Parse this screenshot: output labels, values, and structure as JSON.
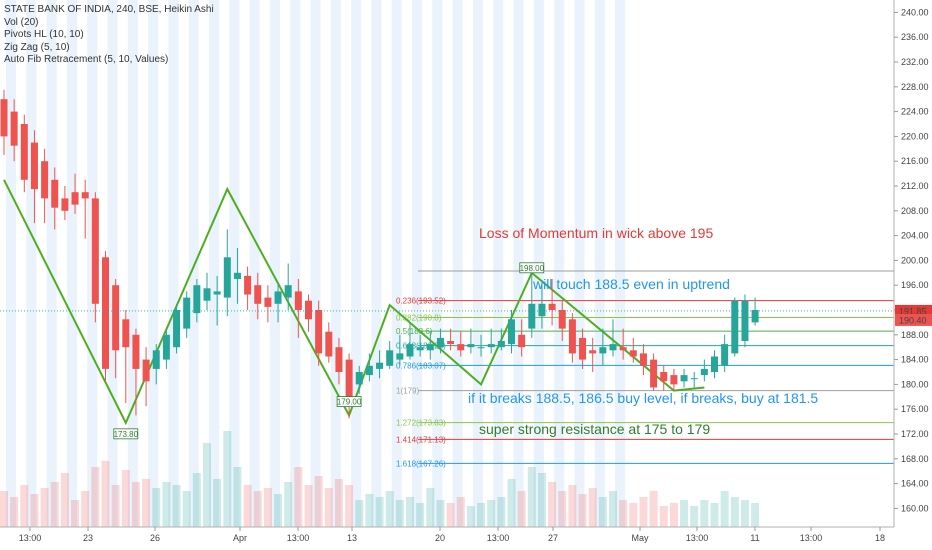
{
  "legend": {
    "symbol_line": "STATE BANK OF INDIA, 240, BSE, Heikin Ashi",
    "indicators": [
      "Vol (20)",
      "Pivots HL (10, 10)",
      "Zig Zag (5, 10)",
      "Auto Fib Retracement (5, 10, Values)"
    ]
  },
  "annotations": [
    {
      "text": "Loss of Momentum in wick above 195",
      "color": "#e53935"
    },
    {
      "text": "will touch 188.5 even in uptrend",
      "color": "#2196f3"
    },
    {
      "text": "if it breaks 188.5, 186.5 buy level, if breaks, buy at 181.5",
      "color": "#2196f3"
    },
    {
      "text": "super strong resistance at 175 to 179",
      "color": "#2e7d32"
    }
  ],
  "colors": {
    "up": "#26a69a",
    "down": "#ef5350",
    "zigzag": "#4caf20",
    "price_tag_a": "#e53935",
    "price_tag_b": "#ef5350"
  },
  "chart_data": {
    "type": "candlestick",
    "symbol": "STATE BANK OF INDIA",
    "interval": "240",
    "exchange": "BSE",
    "style": "Heikin Ashi",
    "ylim": [
      157,
      242
    ],
    "y_ticks": [
      "160.00",
      "164.00",
      "168.00",
      "172.00",
      "176.00",
      "180.00",
      "184.00",
      "188.00",
      "192.00",
      "196.00",
      "200.00",
      "204.00",
      "208.00",
      "212.00",
      "216.00",
      "220.00",
      "224.00",
      "228.00",
      "232.00",
      "236.00",
      "240.00"
    ],
    "x_ticks": [
      "13:00",
      "23",
      "26",
      "Apr",
      "13:00",
      "13",
      "20",
      "13:00",
      "27",
      "May",
      "13:00",
      "11",
      "13:00",
      "18"
    ],
    "price_tags": [
      {
        "label": "191.85",
        "value": 191.85,
        "color": "#e53935"
      },
      {
        "label": "190.40",
        "value": 190.4,
        "color": "#ef5350"
      }
    ],
    "fib_levels": [
      {
        "label": "0.236(193.52)",
        "value": 193.52,
        "color": "#e53935"
      },
      {
        "label": "0.382(190.8)",
        "value": 190.8,
        "color": "#8bc34a"
      },
      {
        "label": "0.5(188.6)",
        "value": 188.6,
        "color": "#4caf50"
      },
      {
        "label": "0.618(186.26)",
        "value": 186.26,
        "color": "#26a69a"
      },
      {
        "label": "0.786(183.07)",
        "value": 183.07,
        "color": "#2196f3"
      },
      {
        "label": "1(179)",
        "value": 179,
        "color": "#9e9e9e"
      },
      {
        "label": "1.272(173.83)",
        "value": 173.83,
        "color": "#8bc34a"
      },
      {
        "label": "1.414(171.13)",
        "value": 171.13,
        "color": "#e53935"
      },
      {
        "label": "1.618(167.26)",
        "value": 167.26,
        "color": "#2196f3"
      }
    ],
    "fib_top_level": 198.3,
    "pivots": [
      {
        "label": "173.80",
        "value": 173.8,
        "index": 12
      },
      {
        "label": "179.00",
        "value": 179.0,
        "index": 34
      },
      {
        "label": "198.00",
        "value": 198.0,
        "index": 52
      }
    ],
    "zigzag": [
      {
        "index": 0,
        "value": 213
      },
      {
        "index": 12,
        "value": 173.8
      },
      {
        "index": 22,
        "value": 211.5
      },
      {
        "index": 34,
        "value": 175
      },
      {
        "index": 38,
        "value": 192.8
      },
      {
        "index": 47,
        "value": 180
      },
      {
        "index": 52,
        "value": 198
      },
      {
        "index": 66,
        "value": 179
      },
      {
        "index": 69,
        "value": 179.5
      }
    ],
    "candles": [
      {
        "o": 226.0,
        "c": 220.0,
        "h": 227.5,
        "l": 217.0,
        "v": 12
      },
      {
        "o": 224.0,
        "c": 218.5,
        "h": 226.0,
        "l": 216.0,
        "v": 10
      },
      {
        "o": 222.0,
        "c": 213.0,
        "h": 223.5,
        "l": 211.0,
        "v": 14
      },
      {
        "o": 219.0,
        "c": 211.5,
        "h": 221.0,
        "l": 206.0,
        "v": 11
      },
      {
        "o": 216.0,
        "c": 210.0,
        "h": 218.0,
        "l": 206.0,
        "v": 13
      },
      {
        "o": 213.0,
        "c": 208.5,
        "h": 215.0,
        "l": 205.0,
        "v": 15
      },
      {
        "o": 210.0,
        "c": 208.0,
        "h": 212.0,
        "l": 206.5,
        "v": 18
      },
      {
        "o": 211.0,
        "c": 209.0,
        "h": 214.0,
        "l": 207.5,
        "v": 9
      },
      {
        "o": 211.0,
        "c": 210.0,
        "h": 213.0,
        "l": 203.5,
        "v": 12
      },
      {
        "o": 210.0,
        "c": 193.0,
        "h": 211.0,
        "l": 190.0,
        "v": 20
      },
      {
        "o": 200.5,
        "c": 182.5,
        "h": 201.5,
        "l": 180.5,
        "v": 22
      },
      {
        "o": 196.0,
        "c": 185.5,
        "h": 197.0,
        "l": 181.0,
        "v": 14
      },
      {
        "o": 190.5,
        "c": 186.0,
        "h": 192.0,
        "l": 177.0,
        "v": 19
      },
      {
        "o": 188.0,
        "c": 182.5,
        "h": 189.0,
        "l": 175.0,
        "v": 15
      },
      {
        "o": 184.0,
        "c": 180.5,
        "h": 186.0,
        "l": 176.5,
        "v": 16
      },
      {
        "o": 182.5,
        "c": 185.5,
        "h": 186.5,
        "l": 180.0,
        "v": 13
      },
      {
        "o": 184.0,
        "c": 188.0,
        "h": 189.0,
        "l": 182.5,
        "v": 15
      },
      {
        "o": 186.0,
        "c": 192.0,
        "h": 193.0,
        "l": 185.0,
        "v": 14
      },
      {
        "o": 189.0,
        "c": 194.0,
        "h": 195.0,
        "l": 187.5,
        "v": 12
      },
      {
        "o": 191.5,
        "c": 196.0,
        "h": 197.0,
        "l": 190.0,
        "v": 18
      },
      {
        "o": 193.5,
        "c": 195.5,
        "h": 198.0,
        "l": 192.0,
        "v": 28
      },
      {
        "o": 194.5,
        "c": 195.0,
        "h": 197.5,
        "l": 189.5,
        "v": 16
      },
      {
        "o": 194.0,
        "c": 200.5,
        "h": 205.0,
        "l": 191.0,
        "v": 32
      },
      {
        "o": 197.0,
        "c": 198.0,
        "h": 202.0,
        "l": 193.0,
        "v": 20
      },
      {
        "o": 197.5,
        "c": 194.5,
        "h": 199.0,
        "l": 192.0,
        "v": 14
      },
      {
        "o": 196.0,
        "c": 193.0,
        "h": 198.0,
        "l": 190.5,
        "v": 12
      },
      {
        "o": 194.0,
        "c": 192.5,
        "h": 196.0,
        "l": 190.0,
        "v": 13
      },
      {
        "o": 193.0,
        "c": 195.0,
        "h": 196.5,
        "l": 190.0,
        "v": 11
      },
      {
        "o": 194.0,
        "c": 196.0,
        "h": 199.5,
        "l": 192.0,
        "v": 15
      },
      {
        "o": 195.0,
        "c": 192.0,
        "h": 197.0,
        "l": 187.5,
        "v": 20
      },
      {
        "o": 193.5,
        "c": 190.5,
        "h": 194.5,
        "l": 188.5,
        "v": 14
      },
      {
        "o": 192.0,
        "c": 185.0,
        "h": 193.5,
        "l": 183.0,
        "v": 17
      },
      {
        "o": 188.5,
        "c": 184.5,
        "h": 190.0,
        "l": 183.5,
        "v": 13
      },
      {
        "o": 186.0,
        "c": 182.0,
        "h": 187.5,
        "l": 180.0,
        "v": 16
      },
      {
        "o": 184.0,
        "c": 176.5,
        "h": 185.0,
        "l": 174.5,
        "v": 14
      },
      {
        "o": 180.0,
        "c": 182.0,
        "h": 183.0,
        "l": 178.5,
        "v": 9
      },
      {
        "o": 181.5,
        "c": 183.0,
        "h": 185.0,
        "l": 180.5,
        "v": 11
      },
      {
        "o": 182.5,
        "c": 183.5,
        "h": 185.5,
        "l": 181.0,
        "v": 10
      },
      {
        "o": 183.0,
        "c": 185.5,
        "h": 187.0,
        "l": 182.5,
        "v": 12
      },
      {
        "o": 184.0,
        "c": 185.0,
        "h": 188.0,
        "l": 183.0,
        "v": 9
      },
      {
        "o": 184.5,
        "c": 186.5,
        "h": 190.0,
        "l": 184.0,
        "v": 10
      },
      {
        "o": 185.5,
        "c": 186.0,
        "h": 188.0,
        "l": 184.5,
        "v": 8
      },
      {
        "o": 185.5,
        "c": 186.5,
        "h": 188.5,
        "l": 184.0,
        "v": 13
      },
      {
        "o": 186.0,
        "c": 187.5,
        "h": 189.0,
        "l": 185.0,
        "v": 9
      },
      {
        "o": 187.0,
        "c": 186.5,
        "h": 189.0,
        "l": 185.5,
        "v": 8
      },
      {
        "o": 186.5,
        "c": 185.5,
        "h": 188.5,
        "l": 184.5,
        "v": 10
      },
      {
        "o": 186.0,
        "c": 186.5,
        "h": 189.0,
        "l": 185.0,
        "v": 7
      },
      {
        "o": 186.0,
        "c": 186.0,
        "h": 188.0,
        "l": 184.5,
        "v": 8
      },
      {
        "o": 186.0,
        "c": 186.5,
        "h": 189.0,
        "l": 185.0,
        "v": 9
      },
      {
        "o": 186.0,
        "c": 187.0,
        "h": 189.0,
        "l": 185.5,
        "v": 10
      },
      {
        "o": 186.5,
        "c": 190.5,
        "h": 192.0,
        "l": 185.0,
        "v": 16
      },
      {
        "o": 188.0,
        "c": 186.0,
        "h": 190.5,
        "l": 184.5,
        "v": 12
      },
      {
        "o": 189.0,
        "c": 193.0,
        "h": 198.0,
        "l": 187.5,
        "v": 20
      },
      {
        "o": 191.0,
        "c": 193.0,
        "h": 196.0,
        "l": 189.0,
        "v": 18
      },
      {
        "o": 193.0,
        "c": 192.0,
        "h": 197.0,
        "l": 189.5,
        "v": 15
      },
      {
        "o": 192.0,
        "c": 189.0,
        "h": 193.5,
        "l": 187.0,
        "v": 12
      },
      {
        "o": 190.5,
        "c": 185.0,
        "h": 191.5,
        "l": 183.5,
        "v": 14
      },
      {
        "o": 187.5,
        "c": 184.0,
        "h": 189.0,
        "l": 182.5,
        "v": 11
      },
      {
        "o": 185.5,
        "c": 185.0,
        "h": 187.5,
        "l": 182.0,
        "v": 13
      },
      {
        "o": 185.0,
        "c": 186.0,
        "h": 189.0,
        "l": 183.0,
        "v": 10
      },
      {
        "o": 185.5,
        "c": 186.5,
        "h": 190.5,
        "l": 184.5,
        "v": 12
      },
      {
        "o": 186.0,
        "c": 185.5,
        "h": 189.0,
        "l": 184.0,
        "v": 9
      },
      {
        "o": 185.5,
        "c": 184.5,
        "h": 187.5,
        "l": 183.5,
        "v": 8
      },
      {
        "o": 185.0,
        "c": 183.0,
        "h": 186.5,
        "l": 181.5,
        "v": 10
      },
      {
        "o": 184.0,
        "c": 179.5,
        "h": 185.0,
        "l": 179.0,
        "v": 12
      },
      {
        "o": 182.0,
        "c": 180.5,
        "h": 183.0,
        "l": 179.0,
        "v": 7
      },
      {
        "o": 181.5,
        "c": 180.0,
        "h": 182.5,
        "l": 179.0,
        "v": 8
      },
      {
        "o": 180.5,
        "c": 181.5,
        "h": 182.5,
        "l": 179.5,
        "v": 9
      },
      {
        "o": 181.0,
        "c": 181.0,
        "h": 182.0,
        "l": 179.5,
        "v": 7
      },
      {
        "o": 181.5,
        "c": 182.5,
        "h": 184.0,
        "l": 180.5,
        "v": 9
      },
      {
        "o": 182.0,
        "c": 184.5,
        "h": 185.5,
        "l": 181.0,
        "v": 8
      },
      {
        "o": 183.0,
        "c": 186.5,
        "h": 188.0,
        "l": 182.0,
        "v": 12
      },
      {
        "o": 185.0,
        "c": 193.5,
        "h": 194.0,
        "l": 184.5,
        "v": 10
      },
      {
        "o": 187.0,
        "c": 193.5,
        "h": 194.5,
        "l": 186.0,
        "v": 9
      },
      {
        "o": 190.0,
        "c": 192.0,
        "h": 194.0,
        "l": 189.5,
        "v": 8
      }
    ]
  }
}
